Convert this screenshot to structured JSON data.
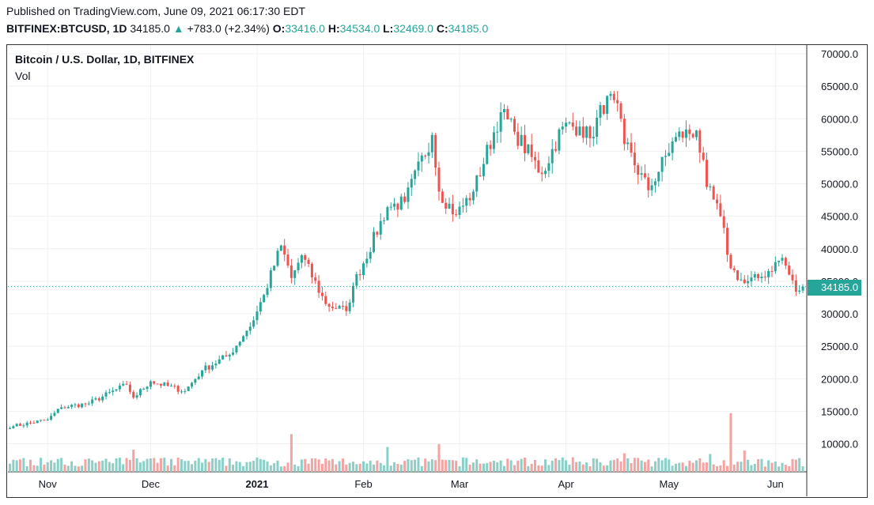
{
  "header": {
    "published": "Published on TradingView.com, June 09, 2021 06:17:30 EDT",
    "symbol": "BITFINEX:BTCUSD, 1D",
    "last": "34185.0",
    "arrow": "▲",
    "change": "+783.0 (+2.34%)",
    "o_label": "O:",
    "o": "33416.0",
    "h_label": "H:",
    "h": "34534.0",
    "l_label": "L:",
    "l": "32469.0",
    "c_label": "C:",
    "c": "34185.0"
  },
  "legend": {
    "title": "Bitcoin / U.S. Dollar, 1D, BITFINEX",
    "vol": "Vol"
  },
  "last_price_tag": "34185.0",
  "colors": {
    "up": "#26a69a",
    "down": "#ef5350",
    "up_vol": "#8ccfc7",
    "down_vol": "#f3a3a1",
    "grid": "#eef0f3"
  },
  "chart_data": {
    "type": "candlestick",
    "y_ticks": [
      "70000.0",
      "65000.0",
      "60000.0",
      "55000.0",
      "50000.0",
      "45000.0",
      "40000.0",
      "35000.0",
      "30000.0",
      "25000.0",
      "20000.0",
      "15000.0",
      "10000.0"
    ],
    "ylim": [
      0,
      70000
    ],
    "x_ticks": [
      "Nov",
      "Dec",
      "2021",
      "Feb",
      "Mar",
      "Apr",
      "May",
      "Jun"
    ],
    "last_price": 34185.0,
    "anchors": [
      {
        "date": "2020-10-22",
        "close": 12700
      },
      {
        "date": "2020-11-01",
        "close": 13700
      },
      {
        "date": "2020-11-05",
        "close": 15600
      },
      {
        "date": "2020-11-13",
        "close": 16200
      },
      {
        "date": "2020-11-24",
        "close": 19100
      },
      {
        "date": "2020-11-26",
        "close": 17100
      },
      {
        "date": "2020-12-01",
        "close": 19600
      },
      {
        "date": "2020-12-11",
        "close": 18100
      },
      {
        "date": "2020-12-16",
        "close": 21300
      },
      {
        "date": "2020-12-24",
        "close": 23700
      },
      {
        "date": "2020-12-31",
        "close": 29000
      },
      {
        "date": "2021-01-03",
        "close": 32900
      },
      {
        "date": "2021-01-08",
        "close": 40500
      },
      {
        "date": "2021-01-11",
        "close": 35500
      },
      {
        "date": "2021-01-14",
        "close": 39000
      },
      {
        "date": "2021-01-21",
        "close": 31500
      },
      {
        "date": "2021-01-27",
        "close": 30400
      },
      {
        "date": "2021-01-29",
        "close": 34300
      },
      {
        "date": "2021-02-08",
        "close": 46400
      },
      {
        "date": "2021-02-13",
        "close": 47200
      },
      {
        "date": "2021-02-21",
        "close": 57500
      },
      {
        "date": "2021-02-23",
        "close": 48800
      },
      {
        "date": "2021-02-28",
        "close": 45200
      },
      {
        "date": "2021-03-05",
        "close": 48800
      },
      {
        "date": "2021-03-13",
        "close": 61000
      },
      {
        "date": "2021-03-17",
        "close": 58000
      },
      {
        "date": "2021-03-25",
        "close": 51500
      },
      {
        "date": "2021-03-31",
        "close": 58800
      },
      {
        "date": "2021-04-05",
        "close": 58800
      },
      {
        "date": "2021-04-08",
        "close": 57000
      },
      {
        "date": "2021-04-13",
        "close": 63500
      },
      {
        "date": "2021-04-17",
        "close": 60000
      },
      {
        "date": "2021-04-18",
        "close": 56100
      },
      {
        "date": "2021-04-25",
        "close": 49000
      },
      {
        "date": "2021-05-03",
        "close": 57200
      },
      {
        "date": "2021-05-09",
        "close": 58200
      },
      {
        "date": "2021-05-12",
        "close": 49500
      },
      {
        "date": "2021-05-16",
        "close": 45000
      },
      {
        "date": "2021-05-19",
        "close": 37000
      },
      {
        "date": "2021-05-23",
        "close": 34700
      },
      {
        "date": "2021-05-28",
        "close": 35700
      },
      {
        "date": "2021-06-03",
        "close": 38600
      },
      {
        "date": "2021-06-07",
        "close": 33400
      },
      {
        "date": "2021-06-09",
        "close": 34185
      }
    ],
    "volume_spikes": [
      {
        "date": "2020-11-26",
        "value": 6200
      },
      {
        "date": "2021-01-11",
        "value": 10600
      },
      {
        "date": "2021-02-08",
        "value": 7000
      },
      {
        "date": "2021-02-23",
        "value": 7800
      },
      {
        "date": "2021-04-18",
        "value": 5200
      },
      {
        "date": "2021-05-13",
        "value": 5000
      },
      {
        "date": "2021-05-19",
        "value": 16500
      },
      {
        "date": "2021-05-23",
        "value": 6000
      }
    ]
  }
}
